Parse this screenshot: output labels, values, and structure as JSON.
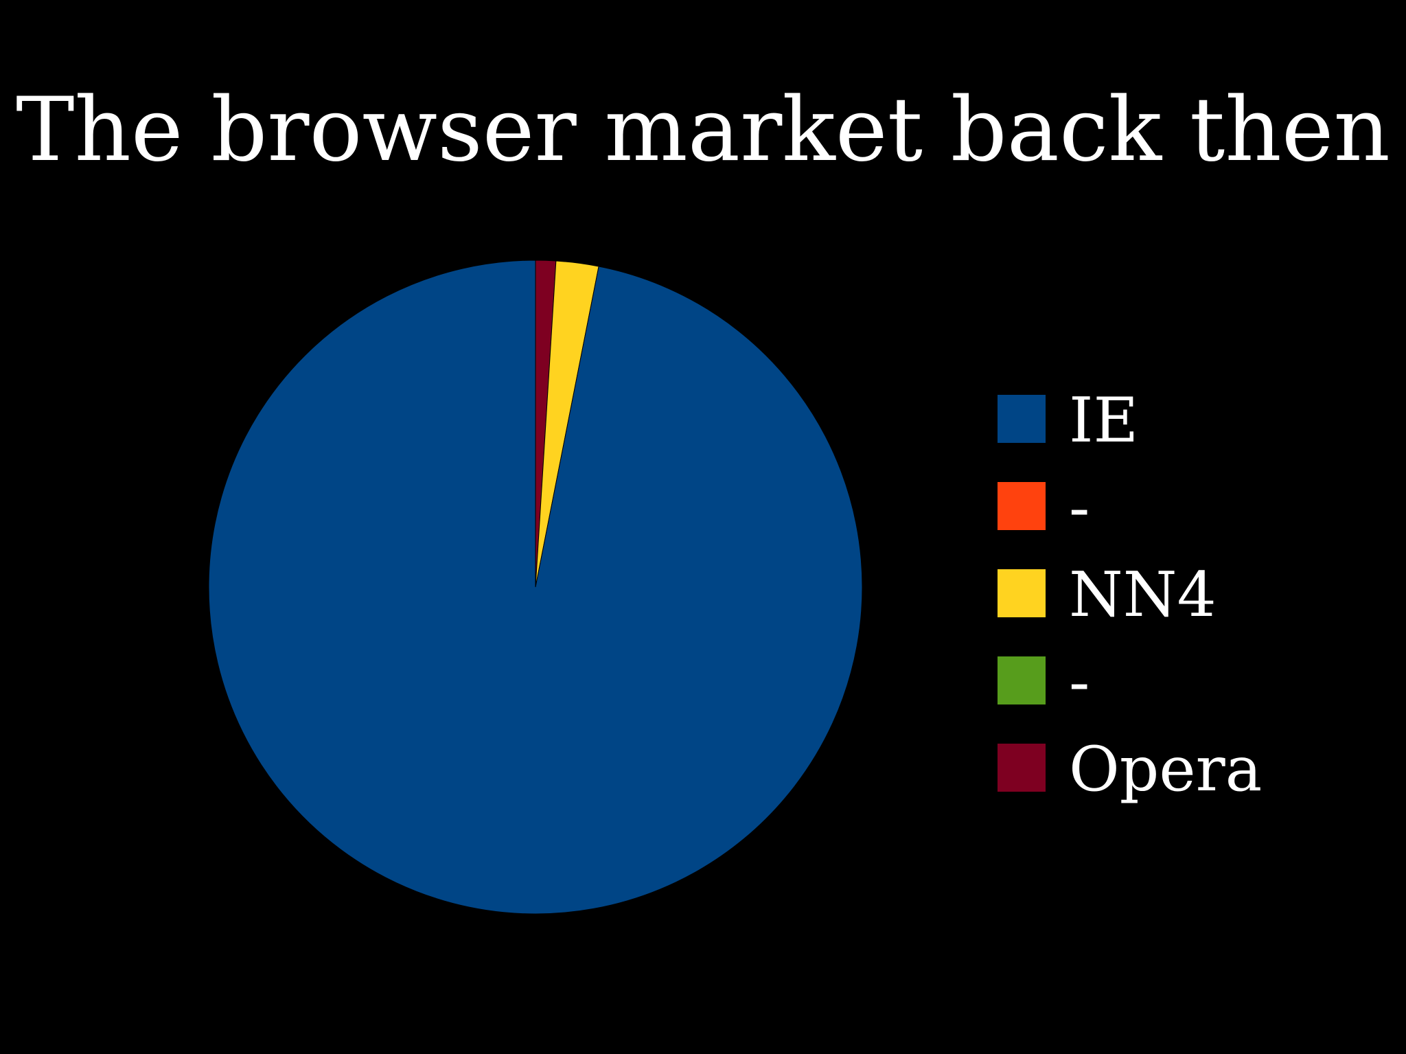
{
  "chart_data": {
    "type": "pie",
    "title": "The browser market back then",
    "slices": [
      {
        "label": "IE",
        "value": 96.9,
        "color": "#004586"
      },
      {
        "label": "-",
        "value": 0,
        "color": "#ff420e"
      },
      {
        "label": "NN4",
        "value": 2.1,
        "color": "#ffd320"
      },
      {
        "label": "-",
        "value": 0,
        "color": "#579d1c"
      },
      {
        "label": "Opera",
        "value": 1.0,
        "color": "#7e0021"
      }
    ],
    "legend_position": "right"
  }
}
